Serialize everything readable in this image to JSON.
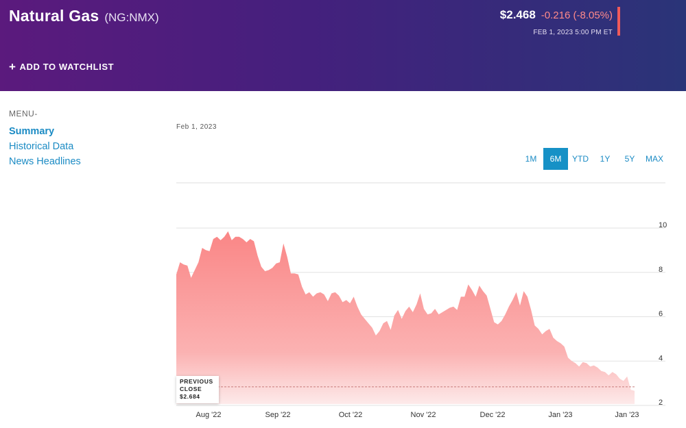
{
  "header": {
    "title": "Natural Gas",
    "ticker": "(NG:NMX)",
    "watchlist_label": "ADD TO WATCHLIST",
    "price": "$2.468",
    "change": "-0.216 (-8.05%)",
    "timestamp": "FEB 1, 2023 5:00 PM ET"
  },
  "colors": {
    "header_start": "#5b1a7d",
    "header_end": "#2a3478",
    "accent": "#1691c6",
    "negative": "#f05a5a",
    "area_fill": "#fa8c8c"
  },
  "menu": {
    "label": "MENU-",
    "items": [
      {
        "label": "Summary",
        "active": true
      },
      {
        "label": "Historical Data",
        "active": false
      },
      {
        "label": "News Headlines",
        "active": false
      }
    ]
  },
  "chart": {
    "date_label": "Feb 1, 2023",
    "ranges": [
      {
        "label": "1M",
        "active": false
      },
      {
        "label": "6M",
        "active": true
      },
      {
        "label": "YTD",
        "active": false
      },
      {
        "label": "1Y",
        "active": false
      },
      {
        "label": "5Y",
        "active": false
      },
      {
        "label": "MAX",
        "active": false
      }
    ],
    "previous_close_line1": "PREVIOUS",
    "previous_close_line2": "CLOSE",
    "previous_close_value": "$2.684"
  },
  "chart_data": {
    "type": "area",
    "x_tick_labels": [
      "Aug '22",
      "Sep '22",
      "Oct '22",
      "Nov '22",
      "Dec '22",
      "Jan '23",
      "Jan '23"
    ],
    "y_tick_labels": [
      "2",
      "4",
      "6",
      "8",
      "10"
    ],
    "ylim": [
      1.9,
      12
    ],
    "grid": true,
    "previous_close": 2.684,
    "series": [
      {
        "values": [
          7.75,
          8.3,
          8.2,
          8.15,
          7.6,
          7.95,
          8.3,
          8.95,
          8.85,
          8.8,
          9.35,
          9.45,
          9.3,
          9.45,
          9.7,
          9.3,
          9.45,
          9.45,
          9.35,
          9.2,
          9.35,
          9.25,
          8.6,
          8.1,
          7.9,
          7.95,
          8.05,
          8.25,
          8.3,
          9.15,
          8.55,
          7.8,
          7.8,
          7.75,
          7.2,
          6.85,
          6.95,
          6.75,
          6.9,
          6.95,
          6.85,
          6.55,
          6.9,
          6.95,
          6.8,
          6.5,
          6.6,
          6.45,
          6.75,
          6.3,
          5.95,
          5.75,
          5.55,
          5.35,
          5.0,
          5.2,
          5.55,
          5.65,
          5.25,
          5.9,
          6.15,
          5.75,
          6.1,
          6.3,
          6.05,
          6.4,
          6.9,
          6.2,
          5.95,
          6.0,
          6.2,
          5.95,
          6.05,
          6.15,
          6.25,
          6.3,
          6.15,
          6.75,
          6.75,
          7.3,
          7.05,
          6.75,
          7.25,
          7.0,
          6.8,
          6.2,
          5.6,
          5.5,
          5.65,
          5.95,
          6.3,
          6.6,
          6.95,
          6.35,
          7.0,
          6.75,
          6.15,
          5.45,
          5.3,
          5.05,
          5.2,
          5.3,
          4.9,
          4.75,
          4.65,
          4.5,
          4.0,
          3.85,
          3.75,
          3.6,
          3.8,
          3.75,
          3.6,
          3.65,
          3.55,
          3.4,
          3.35,
          3.2,
          3.35,
          3.25,
          3.05,
          2.95,
          3.15,
          2.55,
          2.5
        ]
      }
    ]
  }
}
